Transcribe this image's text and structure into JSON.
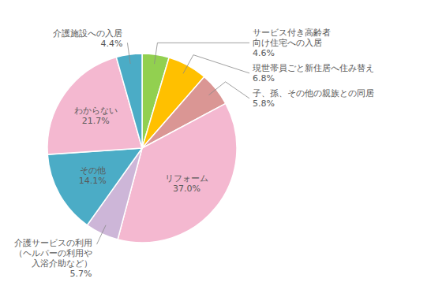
{
  "chart_data": {
    "type": "pie",
    "categories": [
      "サービス付き高齢者\n向け住宅への入居",
      "現世帯員ごと新住居へ住み替え",
      "子、孫、その他の親族との同居",
      "リフォーム",
      "介護サービスの利用\n（ヘルパーの利用や\n入浴介助など）",
      "その他",
      "わからない",
      "介護施設への入居"
    ],
    "values": [
      4.6,
      6.8,
      5.8,
      37.0,
      5.7,
      14.1,
      21.7,
      4.4
    ],
    "value_labels": [
      "4.6%",
      "6.8%",
      "5.8%",
      "37.0%",
      "5.7%",
      "14.1%",
      "21.7%",
      "4.4%"
    ],
    "colors": [
      "#92d050",
      "#ffc000",
      "#da9694",
      "#f4b8d0",
      "#cdb6d8",
      "#4bacc6",
      "#f4b8d0",
      "#4bacc6"
    ],
    "data_labels": true
  }
}
